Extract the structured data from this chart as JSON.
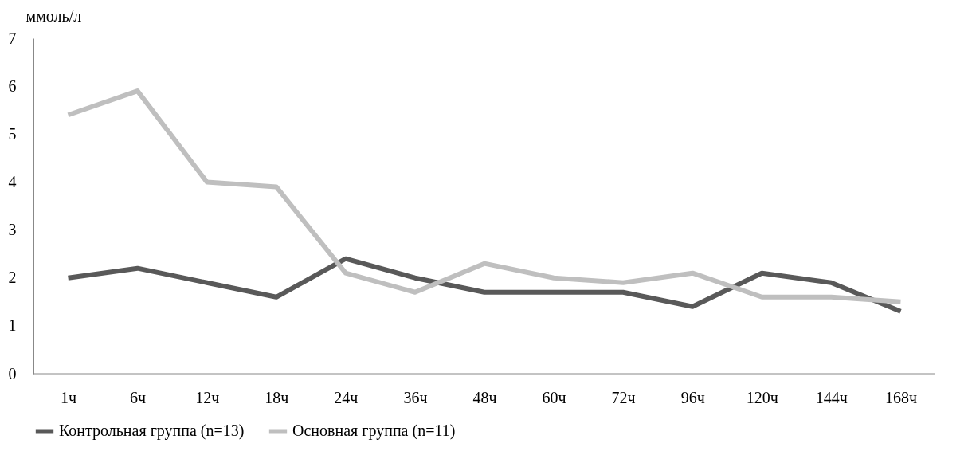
{
  "chart_data": {
    "type": "line",
    "ylabel": "ммоль/л",
    "categories": [
      "1ч",
      "6ч",
      "12ч",
      "18ч",
      "24ч",
      "36ч",
      "48ч",
      "60ч",
      "72ч",
      "96ч",
      "120ч",
      "144ч",
      "168ч"
    ],
    "series": [
      {
        "name": "Контрольная группа (n=13)",
        "color": "#595959",
        "values": [
          2.0,
          2.2,
          1.9,
          1.6,
          2.4,
          2.0,
          1.7,
          1.7,
          1.7,
          1.4,
          2.1,
          1.9,
          1.3
        ]
      },
      {
        "name": "Основная группа (n=11)",
        "color": "#bfbfbf",
        "values": [
          5.4,
          5.9,
          4.0,
          3.9,
          2.1,
          1.7,
          2.3,
          2.0,
          1.9,
          2.1,
          1.6,
          1.6,
          1.5
        ]
      }
    ],
    "ylim": [
      0,
      7
    ],
    "yticks": [
      0,
      1,
      2,
      3,
      4,
      5,
      6,
      7
    ],
    "grid": false,
    "legend": "bottom",
    "marker": "none",
    "line_style": "solid"
  }
}
